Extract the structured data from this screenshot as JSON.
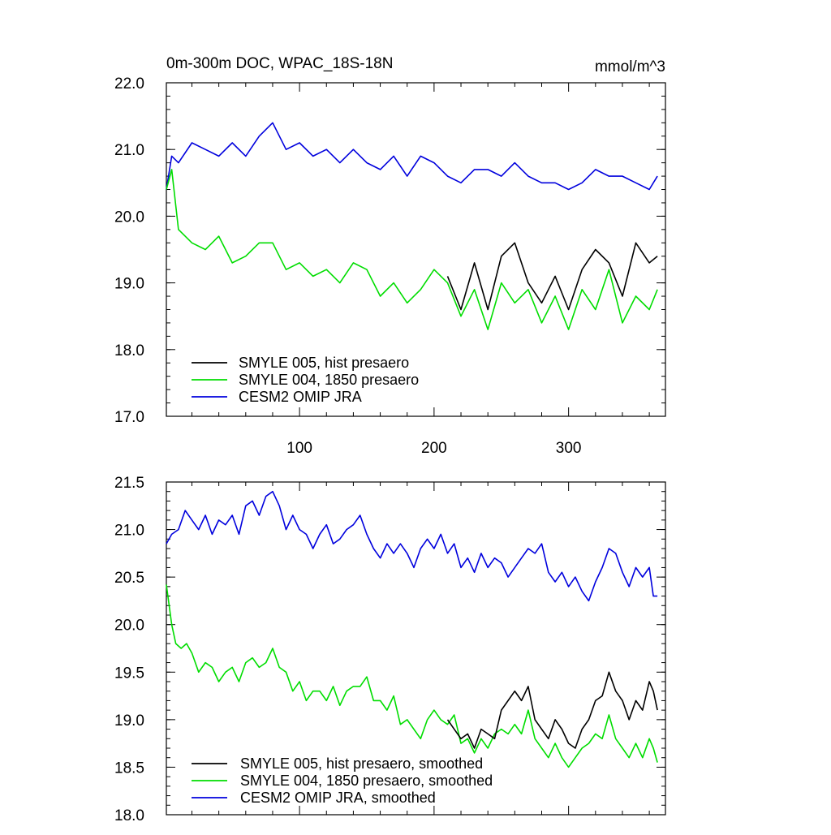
{
  "chart_data": [
    {
      "type": "line",
      "title": "0m-300m DOC, WPAC_18S-18N",
      "units": "mmol/m^3",
      "xlim": [
        1,
        372
      ],
      "ylim": [
        17.0,
        22.0
      ],
      "x_ticks": [
        "100",
        "200",
        "300"
      ],
      "y_ticks": [
        "17.0",
        "18.0",
        "19.0",
        "20.0",
        "21.0",
        "22.0"
      ],
      "grid": false,
      "legend_position": "bottom-left",
      "legend": [
        {
          "name": "SMYLE 005, hist presaero",
          "color": "#000000"
        },
        {
          "name": "SMYLE 004, 1850 presaero",
          "color": "#00dd00"
        },
        {
          "name": "CESM2 OMIP JRA",
          "color": "#0000dd"
        }
      ],
      "series": [
        {
          "name": "SMYLE 005, hist presaero",
          "color": "#000000",
          "x": [
            210,
            220,
            230,
            240,
            250,
            260,
            270,
            280,
            290,
            300,
            310,
            320,
            330,
            340,
            350,
            360,
            366
          ],
          "y": [
            19.1,
            18.6,
            19.3,
            18.6,
            19.4,
            19.6,
            19.0,
            18.7,
            19.1,
            18.6,
            19.2,
            19.5,
            19.3,
            18.8,
            19.6,
            19.3,
            19.4
          ]
        },
        {
          "name": "SMYLE 004, 1850 presaero",
          "color": "#00dd00",
          "x": [
            1,
            5,
            10,
            20,
            30,
            40,
            50,
            60,
            70,
            80,
            90,
            100,
            110,
            120,
            130,
            140,
            150,
            160,
            170,
            180,
            190,
            200,
            210,
            220,
            230,
            240,
            250,
            260,
            270,
            280,
            290,
            300,
            310,
            320,
            330,
            340,
            350,
            360,
            366
          ],
          "y": [
            20.4,
            20.7,
            19.8,
            19.6,
            19.5,
            19.7,
            19.3,
            19.4,
            19.6,
            19.6,
            19.2,
            19.3,
            19.1,
            19.2,
            19.0,
            19.3,
            19.2,
            18.8,
            19.0,
            18.7,
            18.9,
            19.2,
            19.0,
            18.5,
            18.9,
            18.3,
            19.0,
            18.7,
            18.9,
            18.4,
            18.8,
            18.3,
            18.9,
            18.6,
            19.2,
            18.4,
            18.8,
            18.6,
            18.9
          ]
        },
        {
          "name": "CESM2 OMIP JRA",
          "color": "#0000dd",
          "x": [
            1,
            5,
            10,
            20,
            30,
            40,
            50,
            60,
            70,
            80,
            90,
            100,
            110,
            120,
            130,
            140,
            150,
            160,
            170,
            180,
            190,
            200,
            210,
            220,
            230,
            240,
            250,
            260,
            270,
            280,
            290,
            300,
            310,
            320,
            330,
            340,
            350,
            360,
            366
          ],
          "y": [
            20.4,
            20.9,
            20.8,
            21.1,
            21.0,
            20.9,
            21.1,
            20.9,
            21.2,
            21.4,
            21.0,
            21.1,
            20.9,
            21.0,
            20.8,
            21.0,
            20.8,
            20.7,
            20.9,
            20.6,
            20.9,
            20.8,
            20.6,
            20.5,
            20.7,
            20.7,
            20.6,
            20.8,
            20.6,
            20.5,
            20.5,
            20.4,
            20.5,
            20.7,
            20.6,
            20.6,
            20.5,
            20.4,
            20.6
          ]
        }
      ]
    },
    {
      "type": "line",
      "title": "",
      "xlim": [
        1,
        372
      ],
      "ylim": [
        18.0,
        21.5
      ],
      "x_ticks": [
        "100",
        "200",
        "300"
      ],
      "y_ticks": [
        "18.0",
        "18.5",
        "19.0",
        "19.5",
        "20.0",
        "20.5",
        "21.0",
        "21.5"
      ],
      "grid": false,
      "legend_position": "bottom-left",
      "legend": [
        {
          "name": "SMYLE 005, hist presaero, smoothed",
          "color": "#000000"
        },
        {
          "name": "SMYLE 004, 1850 presaero, smoothed",
          "color": "#00dd00"
        },
        {
          "name": "CESM2 OMIP JRA, smoothed",
          "color": "#0000dd"
        }
      ],
      "series": [
        {
          "name": "SMYLE 005, hist presaero, smoothed",
          "color": "#000000",
          "x": [
            210,
            215,
            220,
            225,
            230,
            235,
            240,
            245,
            250,
            255,
            260,
            265,
            270,
            275,
            280,
            285,
            290,
            295,
            300,
            305,
            310,
            315,
            320,
            325,
            330,
            335,
            340,
            345,
            350,
            355,
            360,
            363,
            366
          ],
          "y": [
            19.0,
            18.9,
            18.8,
            18.85,
            18.7,
            18.9,
            18.85,
            18.8,
            19.1,
            19.2,
            19.3,
            19.2,
            19.35,
            19.0,
            18.9,
            18.8,
            19.0,
            18.9,
            18.75,
            18.7,
            18.9,
            19.0,
            19.2,
            19.25,
            19.5,
            19.3,
            19.2,
            19.0,
            19.2,
            19.1,
            19.4,
            19.3,
            19.1
          ]
        },
        {
          "name": "SMYLE 004, 1850 presaero, smoothed",
          "color": "#00dd00",
          "x": [
            1,
            5,
            8,
            12,
            16,
            20,
            25,
            30,
            35,
            40,
            45,
            50,
            55,
            60,
            65,
            70,
            75,
            80,
            85,
            90,
            95,
            100,
            105,
            110,
            115,
            120,
            125,
            130,
            135,
            140,
            145,
            150,
            155,
            160,
            165,
            170,
            175,
            180,
            185,
            190,
            195,
            200,
            205,
            210,
            215,
            220,
            225,
            230,
            235,
            240,
            245,
            250,
            255,
            260,
            265,
            270,
            275,
            280,
            285,
            290,
            295,
            300,
            305,
            310,
            315,
            320,
            325,
            330,
            335,
            340,
            345,
            350,
            355,
            360,
            363,
            366
          ],
          "y": [
            20.42,
            20.0,
            19.8,
            19.75,
            19.8,
            19.7,
            19.5,
            19.6,
            19.55,
            19.4,
            19.5,
            19.55,
            19.4,
            19.6,
            19.65,
            19.55,
            19.6,
            19.75,
            19.55,
            19.5,
            19.3,
            19.4,
            19.2,
            19.3,
            19.3,
            19.2,
            19.35,
            19.15,
            19.3,
            19.35,
            19.35,
            19.45,
            19.2,
            19.2,
            19.1,
            19.25,
            18.95,
            19.0,
            18.9,
            18.8,
            19.0,
            19.1,
            19.0,
            18.95,
            19.05,
            18.75,
            18.8,
            18.65,
            18.8,
            18.7,
            18.85,
            18.9,
            18.85,
            18.95,
            18.85,
            19.1,
            18.8,
            18.7,
            18.6,
            18.75,
            18.6,
            18.5,
            18.6,
            18.7,
            18.75,
            18.85,
            18.8,
            19.05,
            18.8,
            18.7,
            18.6,
            18.75,
            18.6,
            18.8,
            18.7,
            18.55
          ]
        },
        {
          "name": "CESM2 OMIP JRA, smoothed",
          "color": "#0000dd",
          "x": [
            1,
            5,
            10,
            15,
            20,
            25,
            30,
            35,
            40,
            45,
            50,
            55,
            60,
            65,
            70,
            75,
            80,
            85,
            90,
            95,
            100,
            105,
            110,
            115,
            120,
            125,
            130,
            135,
            140,
            145,
            150,
            155,
            160,
            165,
            170,
            175,
            180,
            185,
            190,
            195,
            200,
            205,
            210,
            215,
            220,
            225,
            230,
            235,
            240,
            245,
            250,
            255,
            260,
            265,
            270,
            275,
            280,
            285,
            290,
            295,
            300,
            305,
            310,
            315,
            320,
            325,
            330,
            335,
            340,
            345,
            350,
            355,
            360,
            363,
            366
          ],
          "y": [
            20.85,
            20.95,
            21.0,
            21.2,
            21.1,
            21.0,
            21.15,
            20.95,
            21.1,
            21.05,
            21.15,
            20.95,
            21.25,
            21.3,
            21.15,
            21.35,
            21.4,
            21.25,
            21.0,
            21.15,
            21.0,
            20.95,
            20.8,
            20.95,
            21.05,
            20.85,
            20.9,
            21.0,
            21.05,
            21.15,
            20.95,
            20.8,
            20.7,
            20.85,
            20.75,
            20.85,
            20.75,
            20.6,
            20.8,
            20.9,
            20.8,
            20.95,
            20.75,
            20.85,
            20.6,
            20.7,
            20.55,
            20.75,
            20.6,
            20.7,
            20.65,
            20.5,
            20.6,
            20.7,
            20.8,
            20.75,
            20.85,
            20.55,
            20.45,
            20.55,
            20.4,
            20.5,
            20.35,
            20.25,
            20.45,
            20.6,
            20.8,
            20.75,
            20.55,
            20.4,
            20.6,
            20.5,
            20.6,
            20.3,
            20.3
          ]
        }
      ]
    }
  ]
}
